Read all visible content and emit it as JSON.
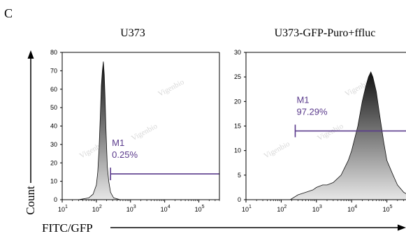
{
  "figure": {
    "panel_letter": "C",
    "y_axis_label": "Count",
    "x_axis_label": "FITC/GFP",
    "watermark": "Vigenbio"
  },
  "colors": {
    "marker": "#5a3a8c",
    "fill_light": "#e6e6e6",
    "fill_dark": "#111111",
    "axis": "#000000"
  },
  "chart_data": [
    {
      "type": "area",
      "title": "U373",
      "x_scale": "log",
      "xlim": [
        10,
        400000
      ],
      "ylim": [
        0,
        80
      ],
      "x_ticks": [
        {
          "value": 10,
          "base": "10",
          "exp": "1"
        },
        {
          "value": 100,
          "base": "10",
          "exp": "2"
        },
        {
          "value": 1000,
          "base": "10",
          "exp": "3"
        },
        {
          "value": 10000,
          "base": "10",
          "exp": "4"
        },
        {
          "value": 100000,
          "base": "10",
          "exp": "5"
        }
      ],
      "y_ticks": [
        "0",
        "10",
        "20",
        "30",
        "40",
        "50",
        "60",
        "70",
        "80"
      ],
      "gate": {
        "name": "M1",
        "percent": "0.25%",
        "x_start": 260,
        "level": 14
      },
      "series": {
        "x": [
          30,
          60,
          80,
          100,
          110,
          120,
          130,
          140,
          150,
          160,
          170,
          180,
          190,
          200,
          210,
          230,
          260,
          320,
          500
        ],
        "y": [
          0,
          1,
          3,
          8,
          15,
          28,
          45,
          62,
          70,
          75,
          68,
          55,
          40,
          28,
          18,
          10,
          4,
          1,
          0
        ]
      }
    },
    {
      "type": "area",
      "title": "U373-GFP-Puro+ffluc",
      "x_scale": "log",
      "xlim": [
        10,
        400000
      ],
      "ylim": [
        0,
        30
      ],
      "x_ticks": [
        {
          "value": 10,
          "base": "10",
          "exp": "1"
        },
        {
          "value": 100,
          "base": "10",
          "exp": "2"
        },
        {
          "value": 1000,
          "base": "10",
          "exp": "3"
        },
        {
          "value": 10000,
          "base": "10",
          "exp": "4"
        },
        {
          "value": 100000,
          "base": "10",
          "exp": "5"
        }
      ],
      "y_ticks": [
        "0",
        "5",
        "10",
        "15",
        "20",
        "25",
        "30"
      ],
      "gate": {
        "name": "M1",
        "percent": "97.29%",
        "x_start": 250,
        "level": 14
      },
      "series": {
        "x": [
          180,
          300,
          500,
          800,
          1000,
          1500,
          2000,
          3000,
          5000,
          8000,
          10000,
          15000,
          20000,
          25000,
          30000,
          35000,
          40000,
          50000,
          60000,
          80000,
          100000,
          150000,
          200000,
          300000,
          400000
        ],
        "y": [
          0,
          1,
          1.5,
          2,
          2.5,
          3,
          3,
          3.5,
          5,
          8,
          10,
          15,
          20,
          23,
          25,
          26,
          25,
          22,
          18,
          12,
          8,
          5,
          3,
          1.5,
          1
        ]
      }
    }
  ]
}
